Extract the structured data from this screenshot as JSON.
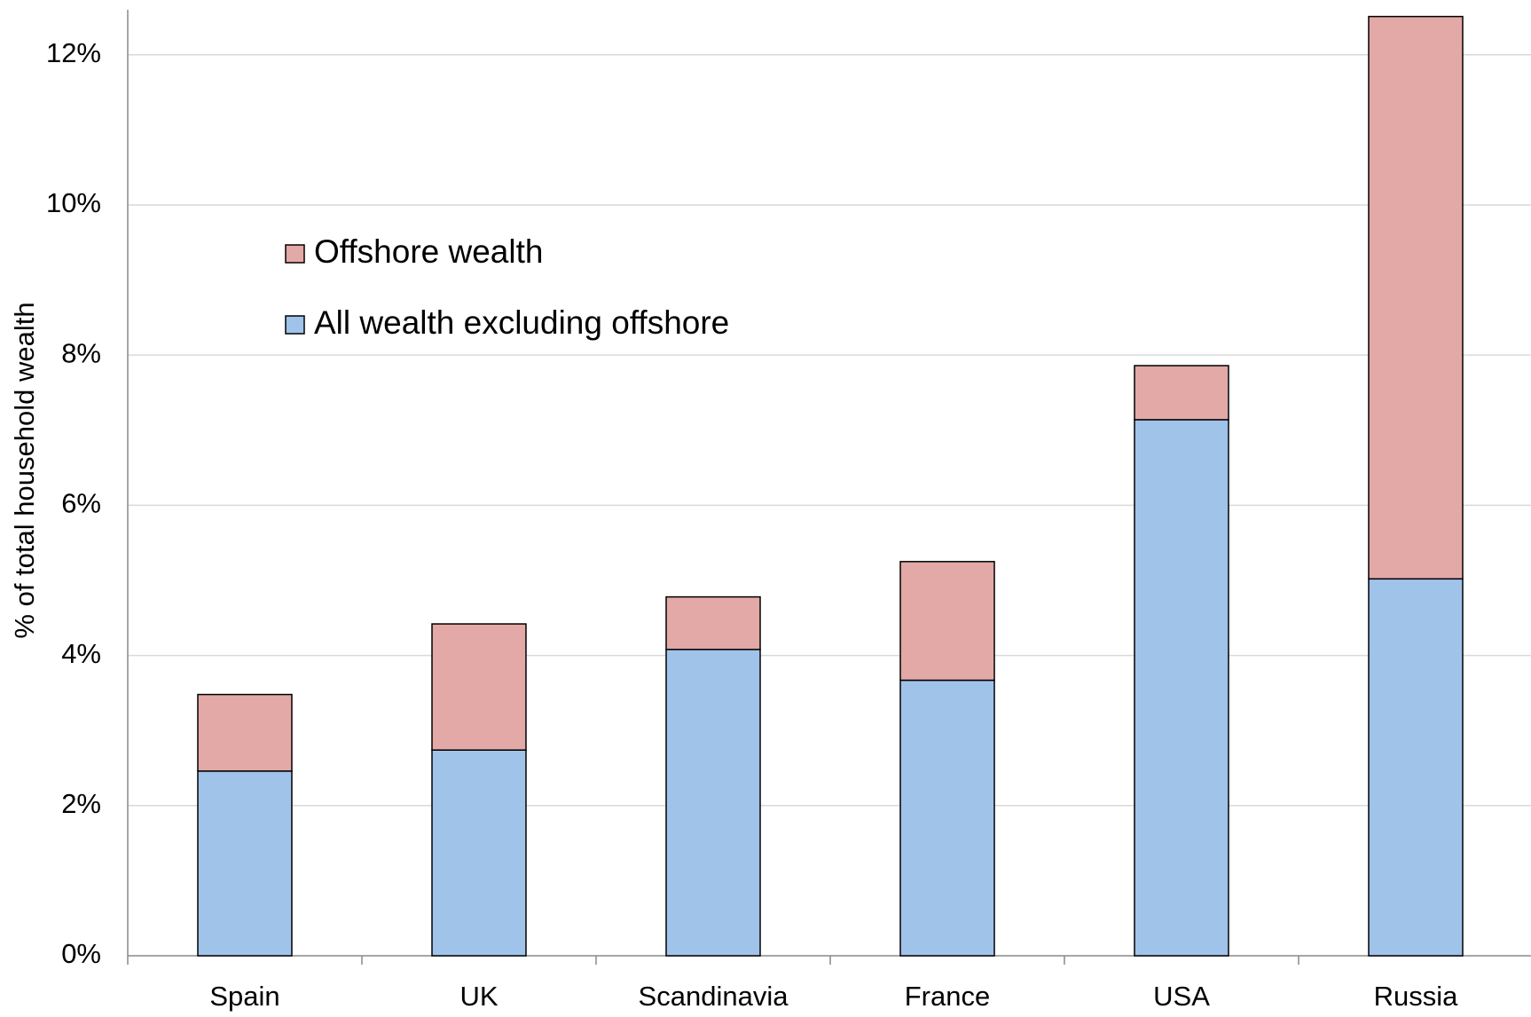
{
  "chart_data": {
    "type": "stacked_bar",
    "y_axis_label": "% of total household wealth",
    "categories": [
      "Spain",
      "UK",
      "Scandinavia",
      "France",
      "USA",
      "Russia"
    ],
    "series": [
      {
        "name": "All wealth excluding offshore",
        "color": "#a0c3ea",
        "values": [
          2.46,
          2.74,
          4.08,
          3.67,
          7.14,
          5.02
        ]
      },
      {
        "name": "Offshore wealth",
        "color": "#e2a9a6",
        "values": [
          1.02,
          1.68,
          0.7,
          1.58,
          0.72,
          7.49
        ]
      }
    ],
    "ylim": [
      0,
      12.6
    ],
    "yticks": [
      {
        "value": 0,
        "label": "0%"
      },
      {
        "value": 2,
        "label": "2%"
      },
      {
        "value": 4,
        "label": "4%"
      },
      {
        "value": 6,
        "label": "6%"
      },
      {
        "value": 8,
        "label": "8%"
      },
      {
        "value": 10,
        "label": "10%"
      },
      {
        "value": 12,
        "label": "12%"
      }
    ],
    "grid": true,
    "legend": "upper left"
  }
}
